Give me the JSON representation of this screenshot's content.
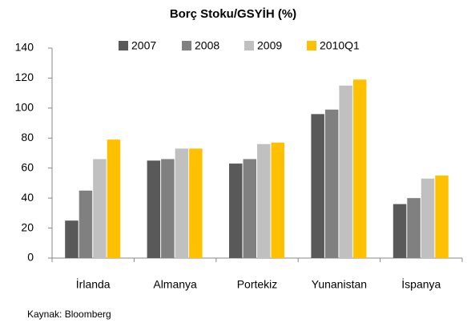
{
  "chart_data": {
    "type": "bar",
    "title": "Borç Stoku/GSYİH (%)",
    "categories": [
      "İrlanda",
      "Almanya",
      "Portekiz",
      "Yunanistan",
      "İspanya"
    ],
    "series": [
      {
        "name": "2007",
        "color": "#595959",
        "values": [
          25,
          65,
          63,
          96,
          36
        ]
      },
      {
        "name": "2008",
        "color": "#808080",
        "values": [
          45,
          66,
          66,
          99,
          40
        ]
      },
      {
        "name": "2009",
        "color": "#c0c0c0",
        "values": [
          66,
          73,
          76,
          115,
          53
        ]
      },
      {
        "name": "2010Q1",
        "color": "#ffc000",
        "values": [
          79,
          73,
          77,
          119,
          55
        ]
      }
    ],
    "ylim": [
      0,
      140
    ],
    "yticks": [
      0,
      20,
      40,
      60,
      80,
      100,
      120,
      140
    ],
    "grid": false,
    "legend": "top",
    "source": "Kaynak: Bloomberg"
  }
}
